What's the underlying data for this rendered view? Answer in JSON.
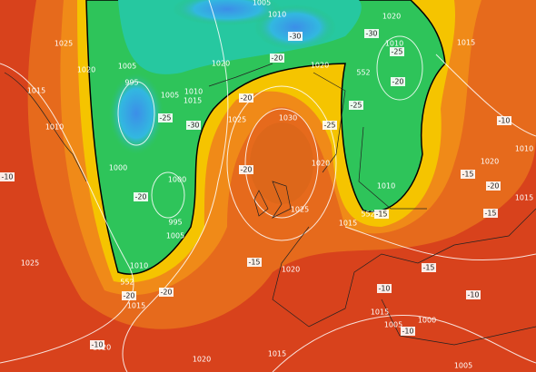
{
  "pressure_labels": [
    "1025",
    "1020",
    "1015",
    "1010",
    "1005",
    "995",
    "1005",
    "1010",
    "1015",
    "1020",
    "1000",
    "1000",
    "995",
    "1005",
    "1010",
    "1015",
    "1020",
    "1025",
    "1025",
    "1030",
    "1020",
    "1025",
    "1015",
    "1020",
    "1010",
    "1010",
    "1015",
    "1020",
    "1020",
    "1010",
    "1005",
    "1015",
    "1020",
    "1005",
    "1000",
    "1010",
    "1015",
    "1020",
    "1005",
    "1015"
  ],
  "temperature_labels": [
    "-25",
    "-30",
    "-20",
    "-15",
    "-20",
    "-25",
    "-25",
    "-20",
    "-25",
    "-30",
    "-20",
    "-30",
    "-20",
    "-15",
    "-10",
    "-15",
    "-20",
    "-15",
    "-10",
    "-10",
    "-10",
    "-20",
    "-20",
    "-10",
    "-10",
    "-15"
  ],
  "height_labels": [
    "552",
    "552",
    "552"
  ]
}
